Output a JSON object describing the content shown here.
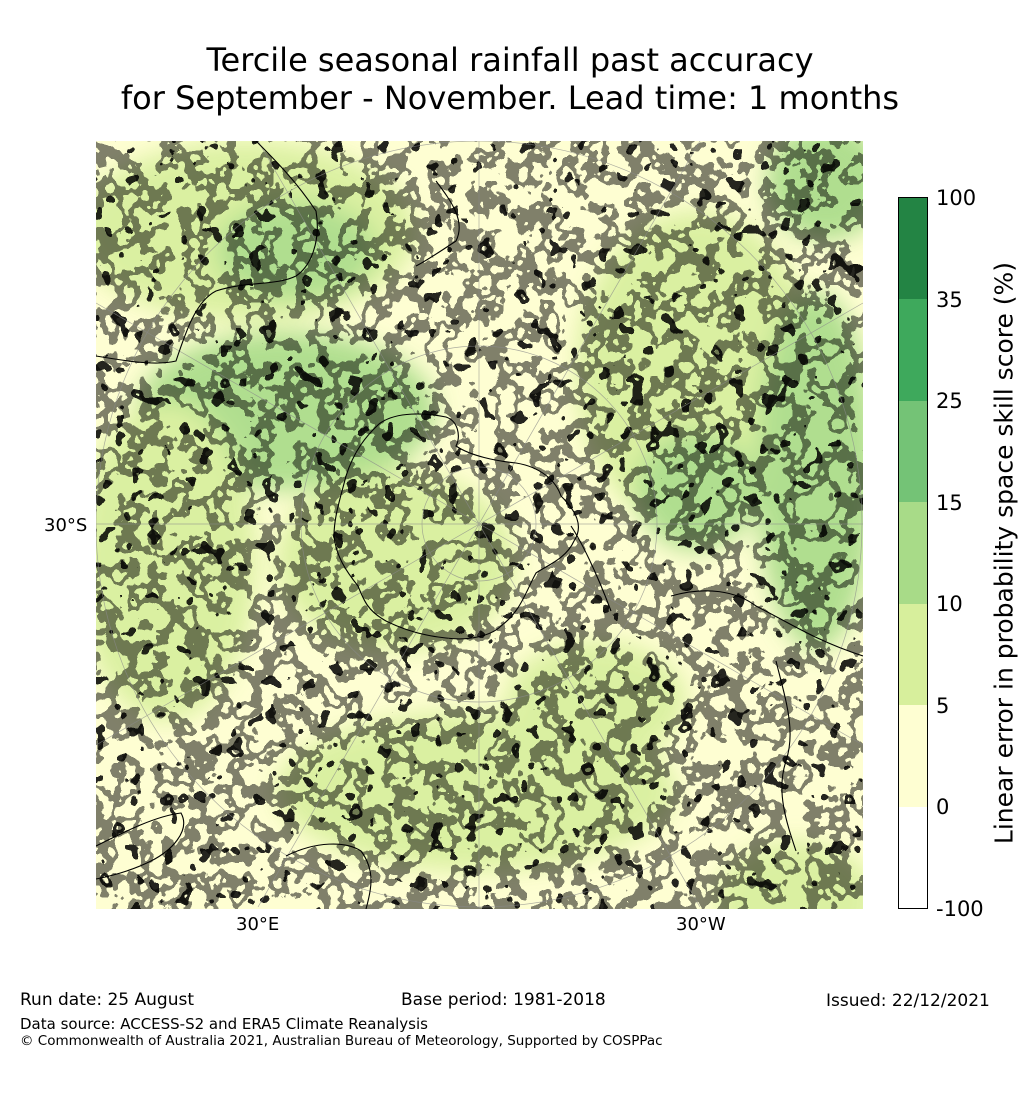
{
  "title": {
    "line1": "Tercile seasonal rainfall past accuracy",
    "line2": "for September - November. Lead time: 1 months"
  },
  "map": {
    "projection": "south-polar-stereographic",
    "colors": {
      "ocean_base": "#fefed2",
      "land_lines": "#000000",
      "grid_lines": "#8a8a8a"
    },
    "graticule_labels": {
      "lat_left": "30°S",
      "lon_bottom_left": "30°E",
      "lon_bottom_right": "30°W"
    }
  },
  "colorbar": {
    "title": "Linear error in probability space skill score (%)",
    "ticks": [
      "100",
      "35",
      "25",
      "15",
      "10",
      "5",
      "0",
      "-100"
    ],
    "bins": [
      {
        "from": -100,
        "to": 0,
        "color": "#ffffff"
      },
      {
        "from": 0,
        "to": 5,
        "color": "#fefed2"
      },
      {
        "from": 5,
        "to": 10,
        "color": "#d7ef9c"
      },
      {
        "from": 10,
        "to": 15,
        "color": "#a8db88"
      },
      {
        "from": 15,
        "to": 25,
        "color": "#74c376"
      },
      {
        "from": 25,
        "to": 35,
        "color": "#3ea95c"
      },
      {
        "from": 35,
        "to": 100,
        "color": "#238444"
      }
    ]
  },
  "footer": {
    "run_date": "Run date: 25 August",
    "base_period": "Base period: 1981-2018",
    "issued": "Issued: 22/12/2021",
    "data_source": "Data source: ACCESS-S2 and ERA5 Climate Reanalysis",
    "copyright": "© Commonwealth of Australia 2021, Australian Bureau of Meteorology, Supported by COSPPac"
  }
}
